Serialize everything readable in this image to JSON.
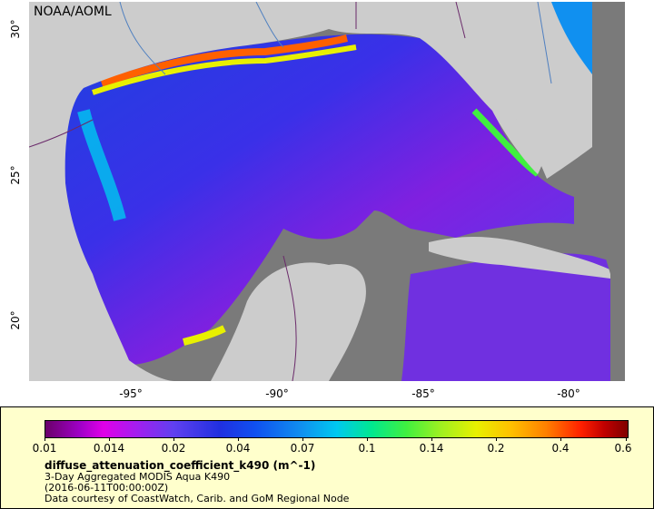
{
  "map": {
    "credit": "NOAA/AOML",
    "lat_ticks": [
      "30°",
      "25°",
      "20°"
    ],
    "lon_ticks": [
      "-95°",
      "-90°",
      "-85°",
      "-80°"
    ],
    "land_color": "#cccccc",
    "nodata_color": "#7a7a7a"
  },
  "legend": {
    "ticks": [
      "0.01",
      "0.014",
      "0.02",
      "0.04",
      "0.07",
      "0.1",
      "0.14",
      "0.2",
      "0.4",
      "0.6"
    ],
    "title": "diffuse_attenuation_coefficient_k490 (m^-1)",
    "line1": "3-Day Aggregated MODIS Aqua K490",
    "line2": "(2016-06-11T00:00:00Z)",
    "line3": "Data courtesy of CoastWatch, Carib. and GoM Regional Node"
  }
}
